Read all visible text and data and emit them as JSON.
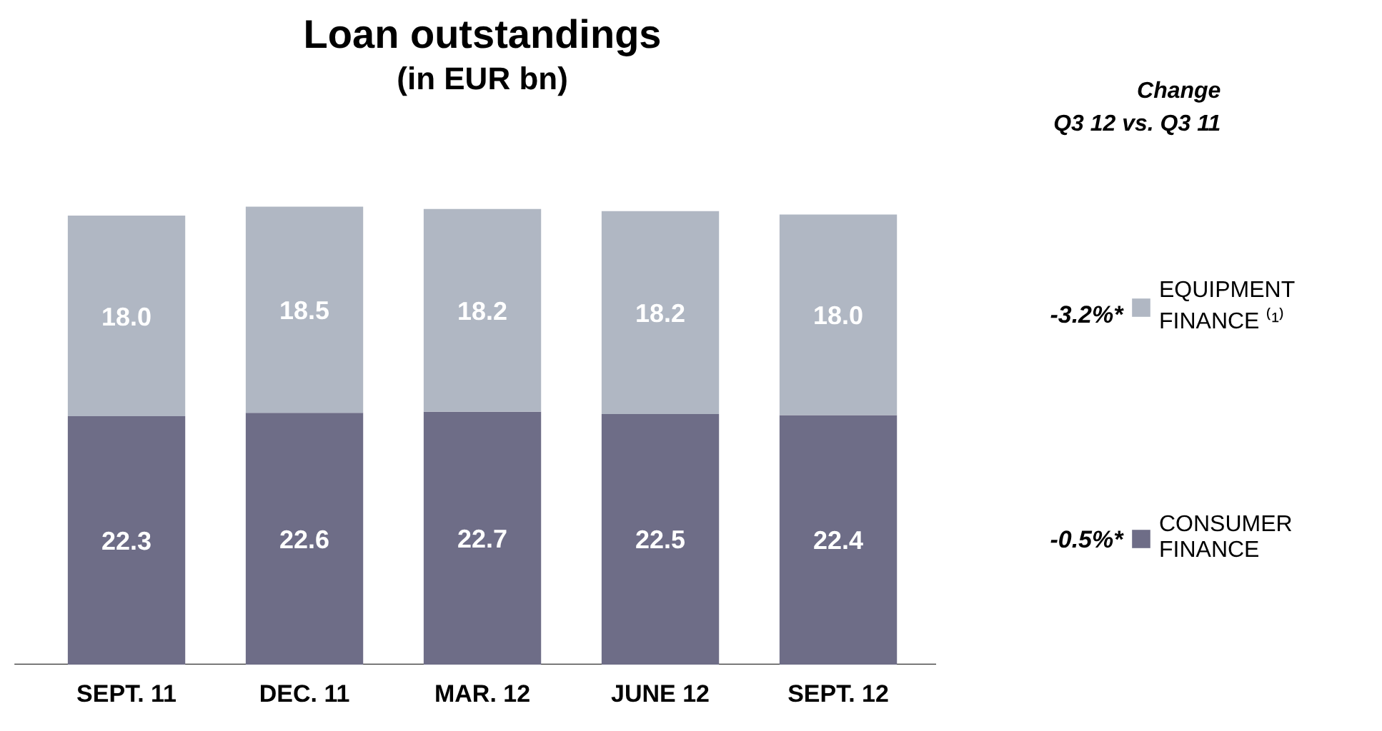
{
  "chart_data": {
    "type": "bar",
    "title": "Loan outstandings",
    "subtitle": "(in EUR bn)",
    "categories": [
      "SEPT. 11",
      "DEC. 11",
      "MAR. 12",
      "JUNE 12",
      "SEPT. 12"
    ],
    "stacked": true,
    "legend": "right",
    "grid": false,
    "series": [
      {
        "name": "CONSUMER FINANCE",
        "color": "#6e6d87",
        "values": [
          22.3,
          22.6,
          22.7,
          22.5,
          22.4
        ],
        "value_labels": [
          "22.3",
          "22.6",
          "22.7",
          "22.5",
          "22.4"
        ]
      },
      {
        "name": "EQUIPMENT FINANCE ⁽¹⁾",
        "color": "#b0b7c3",
        "values": [
          18.0,
          18.5,
          18.2,
          18.2,
          18.0
        ],
        "value_labels": [
          "18.0",
          "18.5",
          "18.2",
          "18.2",
          "18.0"
        ]
      }
    ],
    "annotations": [
      "Change\nQ3 12 vs. Q3 11",
      "-0.5%*",
      "-3.2%*"
    ]
  }
}
